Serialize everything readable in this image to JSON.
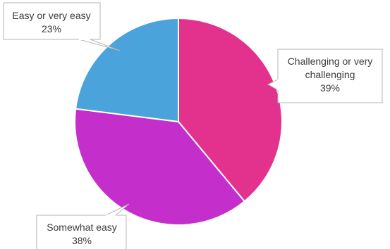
{
  "chart_data": {
    "type": "pie",
    "slices": [
      {
        "label_lines": [
          "Challenging or very",
          "challenging"
        ],
        "value": 39,
        "value_label": "39%",
        "color": "#E3318E"
      },
      {
        "label_lines": [
          "Somewhat easy"
        ],
        "value": 38,
        "value_label": "38%",
        "color": "#C42FCC"
      },
      {
        "label_lines": [
          "Easy or very easy"
        ],
        "value": 23,
        "value_label": "23%",
        "color": "#4BA3DC"
      }
    ],
    "start_angle": "12 o'clock",
    "direction": "clockwise",
    "slice_border_color": "#ffffff",
    "callout_border_color": "#b4b4b4"
  }
}
